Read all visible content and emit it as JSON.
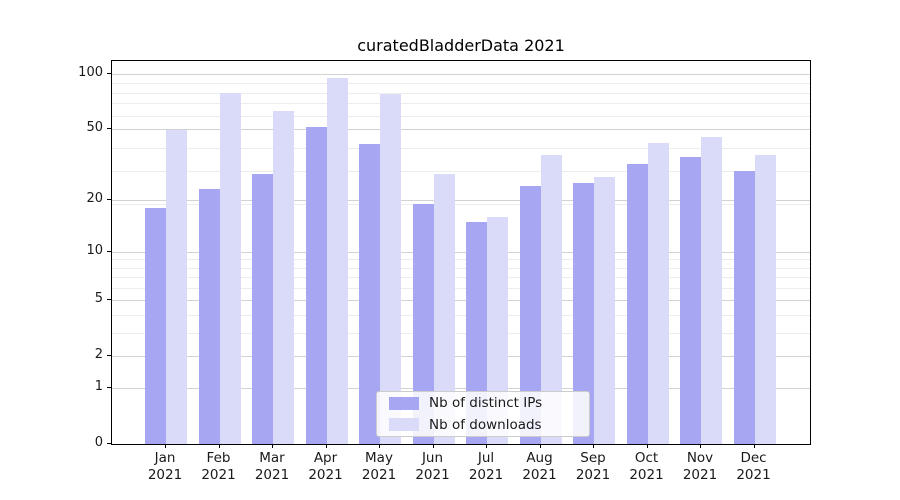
{
  "chart_data": {
    "type": "bar",
    "title": "curatedBladderData 2021",
    "categories": [
      "Jan",
      "Feb",
      "Mar",
      "Apr",
      "May",
      "Jun",
      "Jul",
      "Aug",
      "Sep",
      "Oct",
      "Nov",
      "Dec"
    ],
    "year_label": "2021",
    "series": [
      {
        "name": "Nb of distinct IPs",
        "color": "#a6a6f2",
        "values": [
          18,
          23,
          28,
          51,
          41,
          19,
          15,
          24,
          25,
          32,
          35,
          29
        ]
      },
      {
        "name": "Nb of downloads",
        "color": "#dadaf9",
        "values": [
          49,
          79,
          63,
          95,
          78,
          28,
          16,
          36,
          27,
          42,
          45,
          36
        ]
      }
    ],
    "xlabel": "",
    "ylabel": "",
    "yscale": "log1p",
    "yticks": [
      0,
      1,
      2,
      5,
      10,
      20,
      50,
      100
    ],
    "minor_gridlines": [
      3,
      4,
      6,
      7,
      8,
      9,
      19,
      29,
      39,
      59,
      69,
      79,
      89
    ],
    "ylim": [
      0,
      118
    ],
    "grid": true,
    "legend_position": "lower center"
  },
  "colors": {
    "background": "#ffffff",
    "axis": "#000000",
    "grid_major": "#d2d2d2",
    "grid_minor": "#ededed",
    "tick_label": "#1a1a1a",
    "legend_border": "#cccccc"
  }
}
